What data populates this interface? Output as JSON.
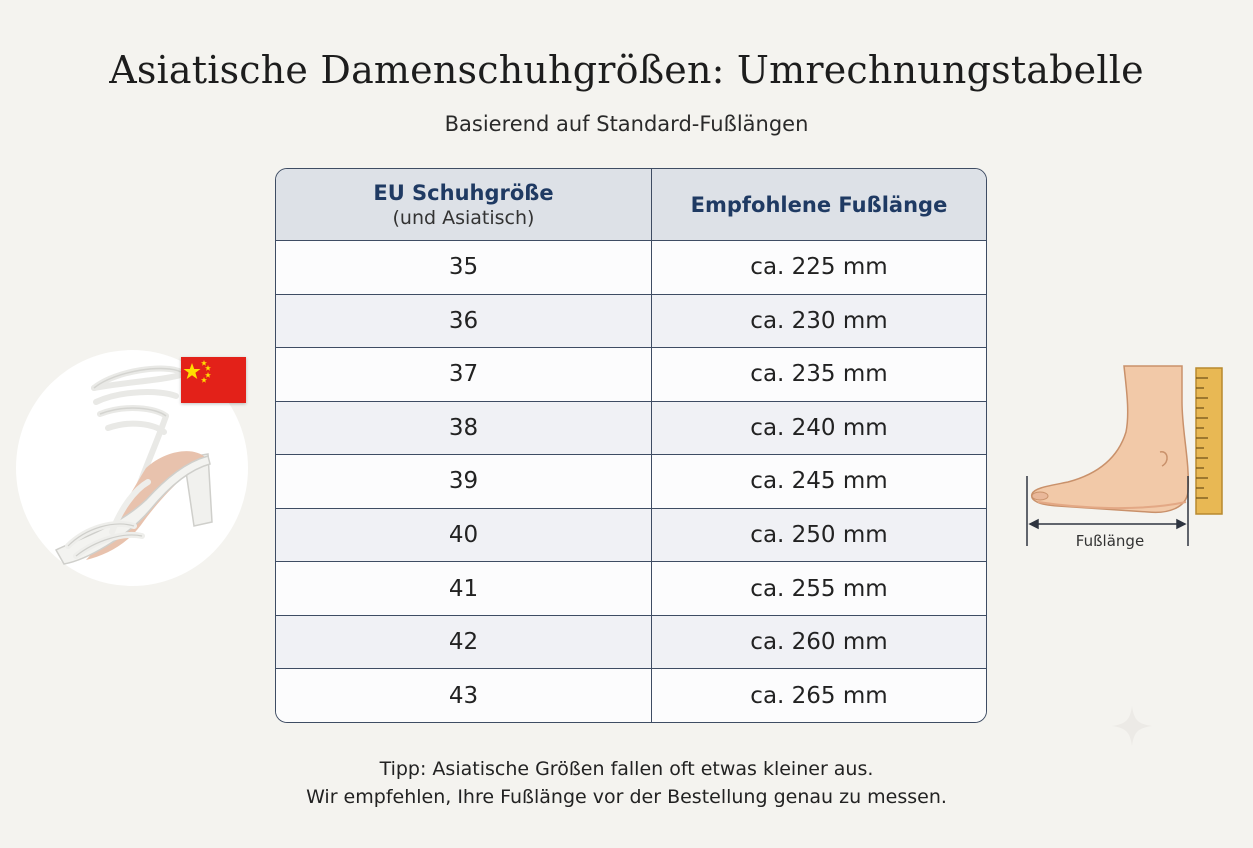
{
  "title": "Asiatische Damenschuhgrößen: Umrechnungstabelle",
  "subtitle": "Basierend auf Standard-Fußlängen",
  "table": {
    "headers": {
      "col1_main": "EU Schuhgröße",
      "col1_sub": "(und Asiatisch)",
      "col2": "Empfohlene Fußlänge"
    },
    "rows": [
      {
        "size": "35",
        "length": "ca. 225 mm"
      },
      {
        "size": "36",
        "length": "ca. 230 mm"
      },
      {
        "size": "37",
        "length": "ca. 235 mm"
      },
      {
        "size": "38",
        "length": "ca. 240 mm"
      },
      {
        "size": "39",
        "length": "ca. 245 mm"
      },
      {
        "size": "40",
        "length": "ca. 250 mm"
      },
      {
        "size": "41",
        "length": "ca. 255 mm"
      },
      {
        "size": "42",
        "length": "ca. 260 mm"
      },
      {
        "size": "43",
        "length": "ca. 265 mm"
      }
    ]
  },
  "tip": {
    "line1": "Tipp: Asiatische Größen fallen oft etwas kleiner aus.",
    "line2": "Wir empfehlen, Ihre Fußlänge vor der Bestellung genau zu messen."
  },
  "foot_diagram": {
    "label": "Fußlänge"
  },
  "icons": {
    "shoe": "strappy-sandal-image",
    "flag": "china-flag-icon",
    "foot": "foot-measure-illustration",
    "sparkle": "sparkle-icon"
  },
  "colors": {
    "header_bg": "#dde1e7",
    "header_text": "#1f3a63",
    "border": "#3e4c63",
    "flag_red": "#e32119",
    "flag_star": "#ffde00"
  }
}
